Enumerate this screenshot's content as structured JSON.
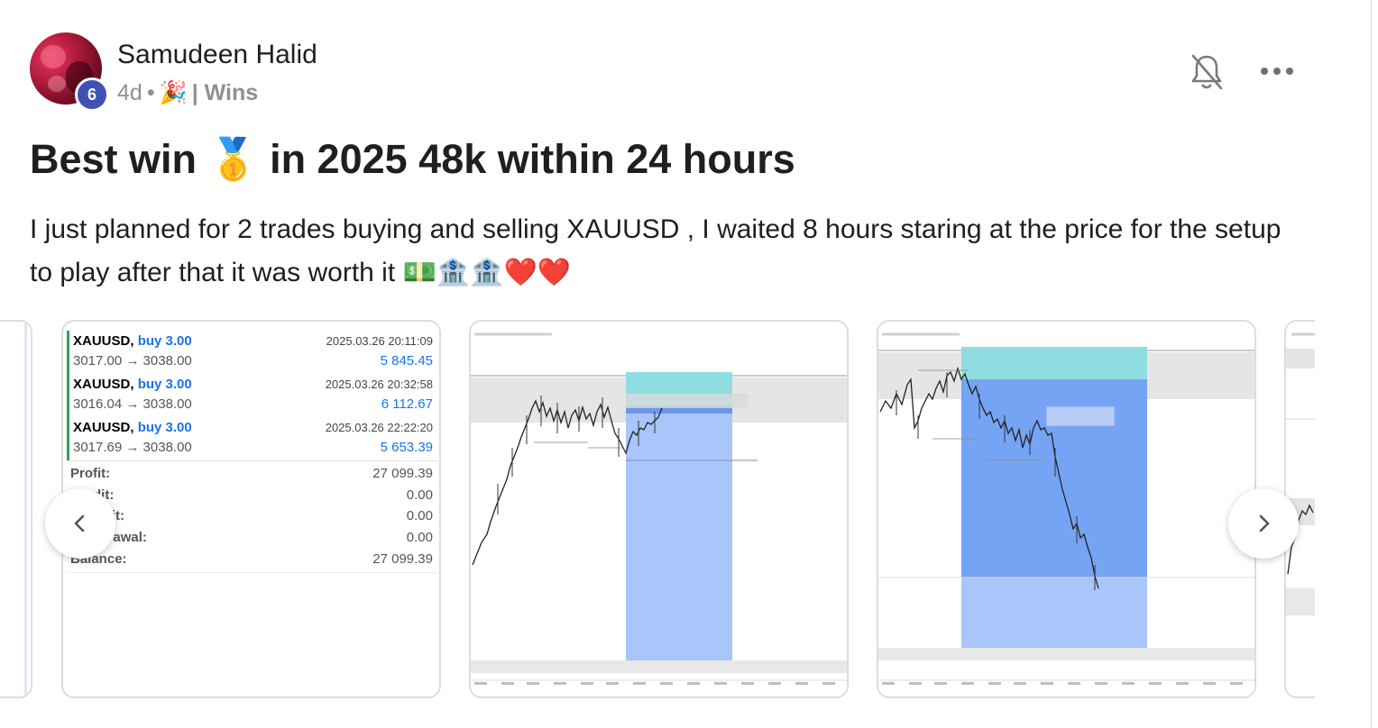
{
  "post": {
    "author": "Samudeen Halid",
    "level": "6",
    "time": "4d",
    "separator": "•",
    "category_icon": "🎉",
    "category": "| Wins",
    "title": "Best win 🥇 in 2025 48k within 24 hours",
    "body": "I just planned for 2 trades buying and selling XAUUSD , I waited 8 hours staring at the price for the setup to play after that it was worth it 💵🏦🏦❤️❤️"
  },
  "actions": {
    "bell_icon": "bell-off-icon",
    "more_icon": "more-horizontal-icon"
  },
  "trades": [
    {
      "symbol": "XAUUSD,",
      "action": "buy 3.00",
      "prices": "3017.00 → 3038.00",
      "date": "2025.03.26 20:11:09",
      "profit": "5 845.45"
    },
    {
      "symbol": "XAUUSD,",
      "action": "buy 3.00",
      "prices": "3016.04 → 3038.00",
      "date": "2025.03.26 20:32:58",
      "profit": "6 112.67"
    },
    {
      "symbol": "XAUUSD,",
      "action": "buy 3.00",
      "prices": "3017.69 → 3038.00",
      "date": "2025.03.26 22:22:20",
      "profit": "5 653.39"
    }
  ],
  "summary": [
    {
      "label": "Profit:",
      "value": "27 099.39"
    },
    {
      "label": "Credit:",
      "value": "0.00"
    },
    {
      "label": "Deposit:",
      "value": "0.00"
    },
    {
      "label": "Withdrawal:",
      "value": "0.00"
    },
    {
      "label": "Balance:",
      "value": "27 099.39"
    }
  ],
  "colors": {
    "level_badge": "#3f51b5",
    "buy_blue": "#1a73e8",
    "trade_bar": "#26a65b",
    "tp_zone": "#8fdde0",
    "sl_zone": "#7ea6f5"
  },
  "carousel": {
    "prev_icon": "chevron-left-icon",
    "next_icon": "chevron-right-icon"
  }
}
